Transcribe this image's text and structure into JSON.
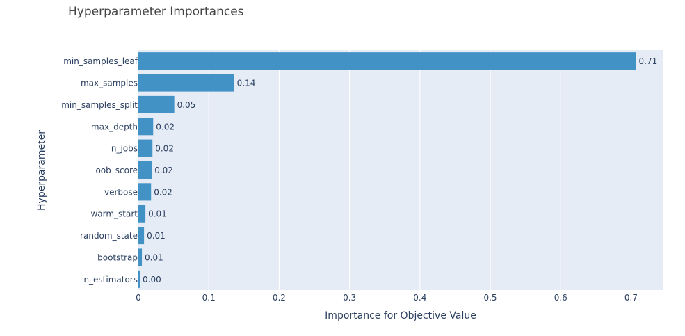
{
  "chart_data": {
    "type": "bar",
    "orientation": "horizontal",
    "title": "Hyperparameter Importances",
    "xlabel": "Importance for Objective Value",
    "ylabel": "Hyperparameter",
    "xlim": [
      0,
      0.745
    ],
    "xticks": [
      0,
      0.1,
      0.2,
      0.3,
      0.4,
      0.5,
      0.6,
      0.7
    ],
    "xtick_labels": [
      "0",
      "0.1",
      "0.2",
      "0.3",
      "0.4",
      "0.5",
      "0.6",
      "0.7"
    ],
    "grid": true,
    "categories": [
      "min_samples_leaf",
      "max_samples",
      "min_samples_split",
      "max_depth",
      "n_jobs",
      "oob_score",
      "verbose",
      "warm_start",
      "random_state",
      "bootstrap",
      "n_estimators"
    ],
    "values": [
      0.707,
      0.136,
      0.051,
      0.021,
      0.02,
      0.019,
      0.018,
      0.01,
      0.008,
      0.005,
      0.002
    ],
    "labels": [
      "0.71",
      "0.14",
      "0.05",
      "0.02",
      "0.02",
      "0.02",
      "0.02",
      "0.01",
      "0.01",
      "0.01",
      "0.00"
    ],
    "colors": {
      "bar": "#4292c6",
      "plot_bg": "#e5ecf6",
      "grid": "#ffffff",
      "text": "#2a3f5f",
      "title": "#444444"
    }
  }
}
